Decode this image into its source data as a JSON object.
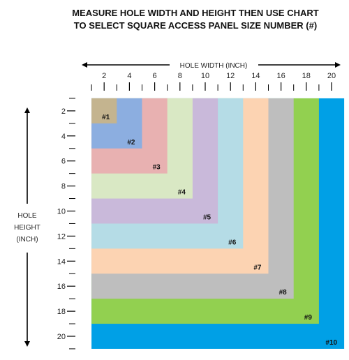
{
  "title_lines": [
    "MEASURE HOLE WIDTH AND HEIGHT THEN USE CHART",
    "TO SELECT SQUARE ACCESS PANEL SIZE NUMBER (#)"
  ],
  "width_axis_label": "HOLE WIDTH (INCH)",
  "height_axis_label_lines": [
    "HOLE",
    "HEIGHT",
    "(INCH)"
  ],
  "width_ticks": [
    2,
    4,
    6,
    8,
    10,
    12,
    14,
    16,
    18,
    20
  ],
  "height_ticks": [
    2,
    4,
    6,
    8,
    10,
    12,
    14,
    16,
    18,
    20
  ],
  "panels": [
    {
      "label": "#1",
      "max_inch": 3,
      "color": "#c4b48f"
    },
    {
      "label": "#2",
      "max_inch": 5,
      "color": "#8caee0"
    },
    {
      "label": "#3",
      "max_inch": 7,
      "color": "#e8b1b1"
    },
    {
      "label": "#4",
      "max_inch": 9,
      "color": "#d9e8c4"
    },
    {
      "label": "#5",
      "max_inch": 11,
      "color": "#c9b9da"
    },
    {
      "label": "#6",
      "max_inch": 13,
      "color": "#b5dce6"
    },
    {
      "label": "#7",
      "max_inch": 15,
      "color": "#fcd3b2"
    },
    {
      "label": "#8",
      "max_inch": 17,
      "color": "#bebebe"
    },
    {
      "label": "#9",
      "max_inch": 19,
      "color": "#92d050"
    },
    {
      "label": "#10",
      "max_inch": 21,
      "color": "#00a0e6"
    }
  ],
  "axis_color": "#000000"
}
